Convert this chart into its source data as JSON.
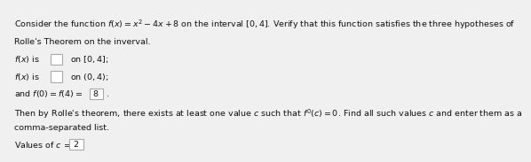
{
  "bg_color": "#f0f0f0",
  "font_size": 6.8,
  "text_color": "#111111",
  "title_line1": "Consider the function $f(x) = x^2 - 4x + 8$ on the interval $[0, 4]$. Verify that this function satisfies the three hypotheses of",
  "title_line2": "Rolle's Theorem on the inverval.",
  "line1a": "$f(x)$ is",
  "line1b": "on $[0, 4]$;",
  "line2a": "$f(x)$ is",
  "line2b": "on $(0, 4)$;",
  "line3a": "and $f(0) = f(4) =$",
  "line3_box_val": "8",
  "line3c": ".",
  "para1": "Then by Rolle's theorem, there exists at least one value $c$ such that $f'(c) = 0$. Find all such values $c$ and enter them as a",
  "para2": "comma-separated list.",
  "ans_label": "Values of $c$ =:",
  "ans_val": "2",
  "box_color": "#ffffff",
  "box_edge": "#aaaaaa"
}
